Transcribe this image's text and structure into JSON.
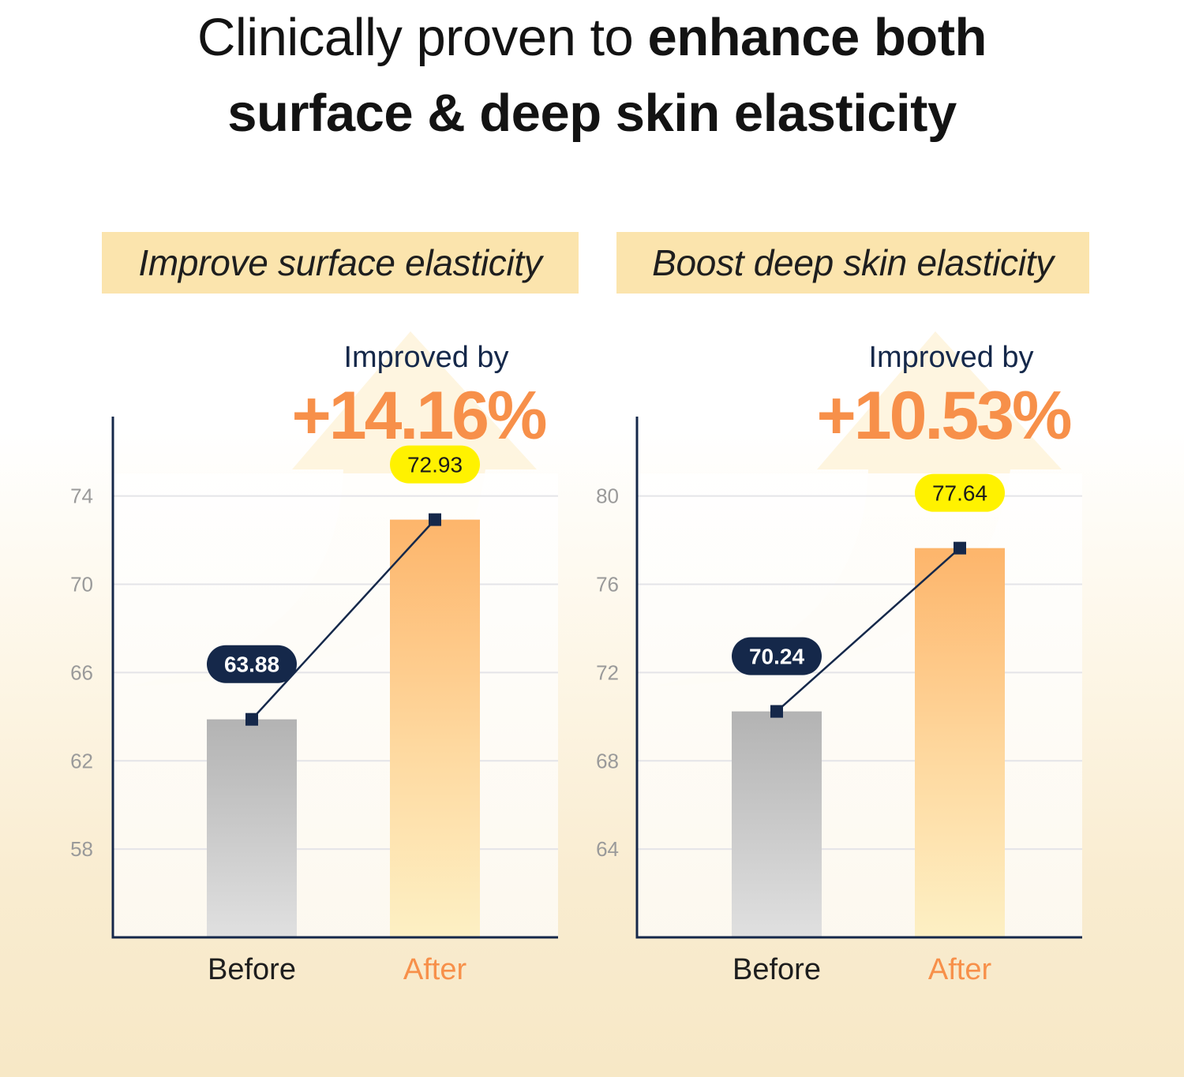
{
  "title": {
    "line1_regular": "Clinically proven to ",
    "line1_bold": "enhance both",
    "line2_bold": "surface & deep skin elasticity"
  },
  "colors": {
    "header_bg": "#fbe4ad",
    "accent_orange": "#f7904a",
    "navy": "#15284a",
    "highlight_yellow": "#fff200",
    "before_bar_top": "#b3b3b3",
    "before_bar_bottom": "#e0e0e0",
    "after_bar_top": "#fdb56b",
    "after_bar_bottom": "#fdf0c4"
  },
  "chart_data": [
    {
      "type": "bar",
      "title": "Improve surface elasticity",
      "improvement_label": "Improved by",
      "improvement_value": "+14.16%",
      "categories": [
        "Before",
        "After"
      ],
      "values": [
        63.88,
        72.93
      ],
      "value_labels": [
        "63.88",
        "72.93"
      ],
      "yticks": [
        74,
        70,
        66,
        62,
        58
      ],
      "ytick_labels": [
        "74",
        "70",
        "66",
        "62",
        "58"
      ],
      "ylim": [
        54,
        77.6
      ],
      "xlabel": "",
      "ylabel": "",
      "grid": true,
      "overlay_line": true
    },
    {
      "type": "bar",
      "title": "Boost deep skin elasticity",
      "improvement_label": "Improved by",
      "improvement_value": "+10.53%",
      "categories": [
        "Before",
        "After"
      ],
      "values": [
        70.24,
        77.64
      ],
      "value_labels": [
        "70.24",
        "77.64"
      ],
      "yticks": [
        80,
        76,
        72,
        68,
        64
      ],
      "ytick_labels": [
        "80",
        "76",
        "72",
        "68",
        "64"
      ],
      "ylim": [
        60,
        83.6
      ],
      "xlabel": "",
      "ylabel": "",
      "grid": true,
      "overlay_line": true
    }
  ]
}
